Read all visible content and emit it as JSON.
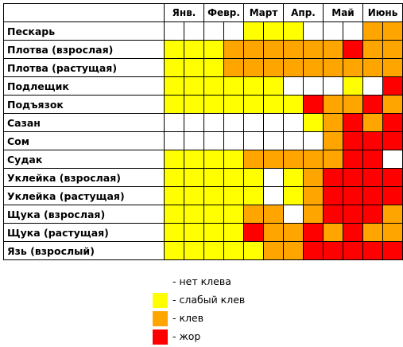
{
  "colors": {
    "none": "#ffffff",
    "weak": "#ffff00",
    "bite": "#ffa500",
    "feed": "#ff0000"
  },
  "months": [
    "Янв.",
    "Февр.",
    "Март",
    "Апр.",
    "Май",
    "Июнь"
  ],
  "rows": [
    {
      "name": "Пескарь",
      "cells": [
        "none",
        "none",
        "none",
        "none",
        "weak",
        "weak",
        "weak",
        "none",
        "none",
        "none",
        "bite",
        "bite"
      ]
    },
    {
      "name": "Плотва (взрослая)",
      "cells": [
        "weak",
        "weak",
        "weak",
        "bite",
        "bite",
        "bite",
        "bite",
        "bite",
        "bite",
        "feed",
        "bite",
        "bite"
      ]
    },
    {
      "name": "Плотва (растущая)",
      "cells": [
        "weak",
        "weak",
        "weak",
        "bite",
        "bite",
        "bite",
        "bite",
        "bite",
        "bite",
        "bite",
        "bite",
        "bite"
      ]
    },
    {
      "name": "Подлещик",
      "cells": [
        "weak",
        "weak",
        "weak",
        "weak",
        "weak",
        "weak",
        "none",
        "none",
        "none",
        "weak",
        "none",
        "feed"
      ]
    },
    {
      "name": "Подъязок",
      "cells": [
        "weak",
        "weak",
        "weak",
        "weak",
        "weak",
        "weak",
        "weak",
        "feed",
        "bite",
        "bite",
        "feed",
        "bite"
      ]
    },
    {
      "name": "Сазан",
      "cells": [
        "none",
        "none",
        "none",
        "none",
        "none",
        "none",
        "none",
        "weak",
        "bite",
        "feed",
        "bite",
        "feed"
      ]
    },
    {
      "name": "Сом",
      "cells": [
        "none",
        "none",
        "none",
        "none",
        "none",
        "none",
        "none",
        "none",
        "bite",
        "feed",
        "feed",
        "feed"
      ]
    },
    {
      "name": "Судак",
      "cells": [
        "weak",
        "weak",
        "weak",
        "weak",
        "bite",
        "bite",
        "bite",
        "bite",
        "bite",
        "feed",
        "feed",
        "none"
      ]
    },
    {
      "name": "Уклейка (взрослая)",
      "cells": [
        "weak",
        "weak",
        "weak",
        "weak",
        "weak",
        "none",
        "weak",
        "bite",
        "feed",
        "feed",
        "feed",
        "feed"
      ]
    },
    {
      "name": "Уклейка (растущая)",
      "cells": [
        "weak",
        "weak",
        "weak",
        "weak",
        "weak",
        "none",
        "weak",
        "bite",
        "feed",
        "feed",
        "feed",
        "feed"
      ]
    },
    {
      "name": "Щука (взрослая)",
      "cells": [
        "weak",
        "weak",
        "weak",
        "weak",
        "bite",
        "bite",
        "none",
        "bite",
        "feed",
        "feed",
        "feed",
        "bite"
      ]
    },
    {
      "name": "Щука (растущая)",
      "cells": [
        "weak",
        "weak",
        "weak",
        "weak",
        "feed",
        "bite",
        "bite",
        "feed",
        "bite",
        "feed",
        "bite",
        "bite"
      ]
    },
    {
      "name": "Язь (взрослый)",
      "cells": [
        "weak",
        "weak",
        "weak",
        "weak",
        "weak",
        "bite",
        "bite",
        "feed",
        "feed",
        "feed",
        "feed",
        "feed"
      ]
    }
  ],
  "legend": [
    {
      "key": "none",
      "label": "- нет клева"
    },
    {
      "key": "weak",
      "label": "- слабый клев"
    },
    {
      "key": "bite",
      "label": "- клев"
    },
    {
      "key": "feed",
      "label": "- жор"
    }
  ]
}
